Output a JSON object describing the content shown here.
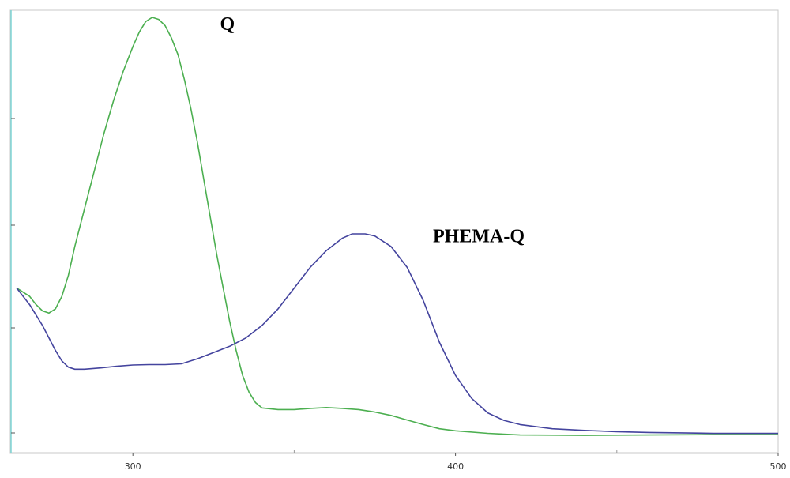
{
  "chart_data": {
    "type": "line",
    "title": "",
    "xlabel": "",
    "ylabel": "",
    "xlim": [
      262,
      500
    ],
    "ylim": [
      0,
      1
    ],
    "x_tick_labels": [
      "300",
      "400",
      "500"
    ],
    "x_ticks": [
      300,
      400,
      500
    ],
    "grid": false,
    "series": [
      {
        "name": "Q",
        "color": "#4caf50",
        "points": [
          [
            264,
            0.35
          ],
          [
            266,
            0.34
          ],
          [
            268,
            0.33
          ],
          [
            270,
            0.31
          ],
          [
            272,
            0.295
          ],
          [
            274,
            0.29
          ],
          [
            276,
            0.3
          ],
          [
            278,
            0.33
          ],
          [
            280,
            0.38
          ],
          [
            282,
            0.45
          ],
          [
            285,
            0.54
          ],
          [
            288,
            0.63
          ],
          [
            291,
            0.72
          ],
          [
            294,
            0.8
          ],
          [
            297,
            0.87
          ],
          [
            300,
            0.93
          ],
          [
            302,
            0.965
          ],
          [
            304,
            0.99
          ],
          [
            306,
            1.0
          ],
          [
            308,
            0.995
          ],
          [
            310,
            0.98
          ],
          [
            312,
            0.95
          ],
          [
            314,
            0.91
          ],
          [
            316,
            0.85
          ],
          [
            318,
            0.78
          ],
          [
            320,
            0.7
          ],
          [
            322,
            0.61
          ],
          [
            324,
            0.52
          ],
          [
            326,
            0.43
          ],
          [
            328,
            0.35
          ],
          [
            330,
            0.27
          ],
          [
            332,
            0.2
          ],
          [
            334,
            0.14
          ],
          [
            336,
            0.1
          ],
          [
            338,
            0.075
          ],
          [
            340,
            0.062
          ],
          [
            345,
            0.058
          ],
          [
            350,
            0.058
          ],
          [
            355,
            0.061
          ],
          [
            360,
            0.063
          ],
          [
            365,
            0.061
          ],
          [
            370,
            0.058
          ],
          [
            375,
            0.052
          ],
          [
            380,
            0.044
          ],
          [
            385,
            0.033
          ],
          [
            390,
            0.022
          ],
          [
            395,
            0.012
          ],
          [
            400,
            0.007
          ],
          [
            410,
            0.001
          ],
          [
            420,
            -0.003
          ],
          [
            440,
            -0.004
          ],
          [
            460,
            -0.003
          ],
          [
            480,
            -0.002
          ],
          [
            500,
            -0.002
          ]
        ]
      },
      {
        "name": "PHEMA-Q",
        "color": "#44449e",
        "points": [
          [
            264,
            0.35
          ],
          [
            266,
            0.33
          ],
          [
            268,
            0.31
          ],
          [
            270,
            0.285
          ],
          [
            272,
            0.26
          ],
          [
            274,
            0.23
          ],
          [
            276,
            0.2
          ],
          [
            278,
            0.175
          ],
          [
            280,
            0.16
          ],
          [
            282,
            0.155
          ],
          [
            285,
            0.155
          ],
          [
            290,
            0.158
          ],
          [
            295,
            0.162
          ],
          [
            300,
            0.165
          ],
          [
            305,
            0.166
          ],
          [
            310,
            0.166
          ],
          [
            315,
            0.168
          ],
          [
            320,
            0.18
          ],
          [
            325,
            0.195
          ],
          [
            330,
            0.21
          ],
          [
            335,
            0.23
          ],
          [
            340,
            0.26
          ],
          [
            345,
            0.3
          ],
          [
            350,
            0.35
          ],
          [
            355,
            0.4
          ],
          [
            360,
            0.44
          ],
          [
            365,
            0.47
          ],
          [
            368,
            0.48
          ],
          [
            372,
            0.48
          ],
          [
            375,
            0.475
          ],
          [
            380,
            0.45
          ],
          [
            385,
            0.4
          ],
          [
            390,
            0.32
          ],
          [
            395,
            0.22
          ],
          [
            400,
            0.14
          ],
          [
            405,
            0.085
          ],
          [
            410,
            0.05
          ],
          [
            415,
            0.032
          ],
          [
            420,
            0.022
          ],
          [
            430,
            0.012
          ],
          [
            440,
            0.008
          ],
          [
            450,
            0.005
          ],
          [
            460,
            0.003
          ],
          [
            470,
            0.002
          ],
          [
            480,
            0.001
          ],
          [
            490,
            0.001
          ],
          [
            500,
            0.001
          ]
        ]
      }
    ],
    "annotations": [
      {
        "text": "Q",
        "series": "Q",
        "x": 327,
        "y": 0.97
      },
      {
        "text": "PHEMA-Q",
        "series": "PHEMA-Q",
        "x": 393,
        "y": 0.46
      }
    ]
  }
}
